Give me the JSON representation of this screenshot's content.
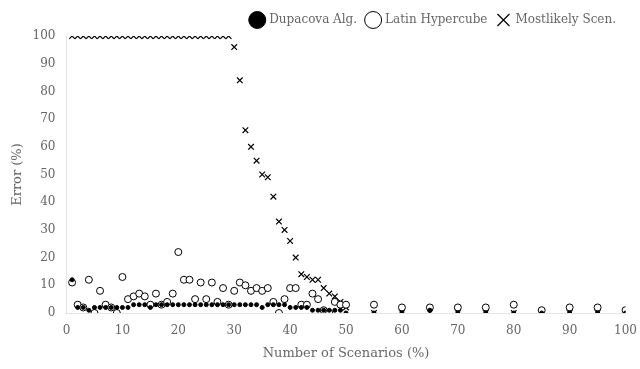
{
  "chart_data": {
    "type": "scatter",
    "xlabel": "Number of Scenarios (%)",
    "ylabel": "Error (%)",
    "xlim": [
      0,
      100
    ],
    "ylim": [
      0,
      100
    ],
    "xticks": [
      0,
      10,
      20,
      30,
      40,
      50,
      60,
      70,
      80,
      90,
      100
    ],
    "yticks": [
      0,
      10,
      20,
      30,
      40,
      50,
      60,
      70,
      80,
      90,
      100
    ],
    "grid": false,
    "legend": "upper right",
    "x": [
      1,
      2,
      3,
      4,
      5,
      6,
      7,
      8,
      9,
      10,
      11,
      12,
      13,
      14,
      15,
      16,
      17,
      18,
      19,
      20,
      21,
      22,
      23,
      24,
      25,
      26,
      27,
      28,
      29,
      30,
      31,
      32,
      33,
      34,
      35,
      36,
      37,
      38,
      39,
      40,
      41,
      42,
      43,
      44,
      45,
      46,
      47,
      48,
      49,
      50,
      55,
      60,
      65,
      70,
      75,
      80,
      85,
      90,
      95,
      100
    ],
    "series": [
      {
        "name": "Dupacova Alg.",
        "color": "#000000",
        "marker": "circle",
        "values": [
          12,
          2,
          2,
          1,
          2,
          2,
          2,
          2,
          2,
          2,
          2,
          3,
          3,
          3,
          2,
          3,
          3,
          3,
          3,
          3,
          3,
          3,
          3,
          3,
          3,
          3,
          3,
          3,
          3,
          3,
          3,
          3,
          3,
          3,
          2,
          3,
          3,
          3,
          3,
          2,
          2,
          2,
          2,
          1,
          1,
          1,
          1,
          1,
          1,
          0,
          0,
          0,
          1,
          0,
          0,
          0,
          0,
          0,
          0,
          0
        ]
      },
      {
        "name": "Latin Hypercube",
        "color": "#000000",
        "marker": "open_circle",
        "values": [
          11,
          3,
          2,
          12,
          0,
          8,
          3,
          2,
          0,
          13,
          5,
          6,
          7,
          6,
          3,
          7,
          3,
          4,
          7,
          22,
          12,
          12,
          5,
          11,
          5,
          11,
          4,
          9,
          3,
          8,
          11,
          10,
          8,
          9,
          8,
          9,
          4,
          0,
          5,
          9,
          9,
          3,
          3,
          7,
          5,
          1,
          0,
          4,
          3,
          3,
          3,
          2,
          2,
          2,
          2,
          3,
          1,
          2,
          2,
          1
        ]
      },
      {
        "name": "Mostlikely Scen.",
        "color": "#000000",
        "marker": "x",
        "values": [
          100,
          100,
          100,
          100,
          100,
          100,
          100,
          100,
          100,
          100,
          100,
          100,
          100,
          100,
          100,
          100,
          100,
          100,
          100,
          100,
          100,
          100,
          100,
          100,
          100,
          100,
          100,
          100,
          100,
          96,
          84,
          66,
          60,
          55,
          50,
          49,
          42,
          33,
          30,
          26,
          20,
          14,
          13,
          12,
          12,
          9,
          7,
          6,
          4,
          2,
          0,
          0,
          0,
          0,
          0,
          0,
          0,
          0,
          0,
          0
        ]
      }
    ]
  }
}
